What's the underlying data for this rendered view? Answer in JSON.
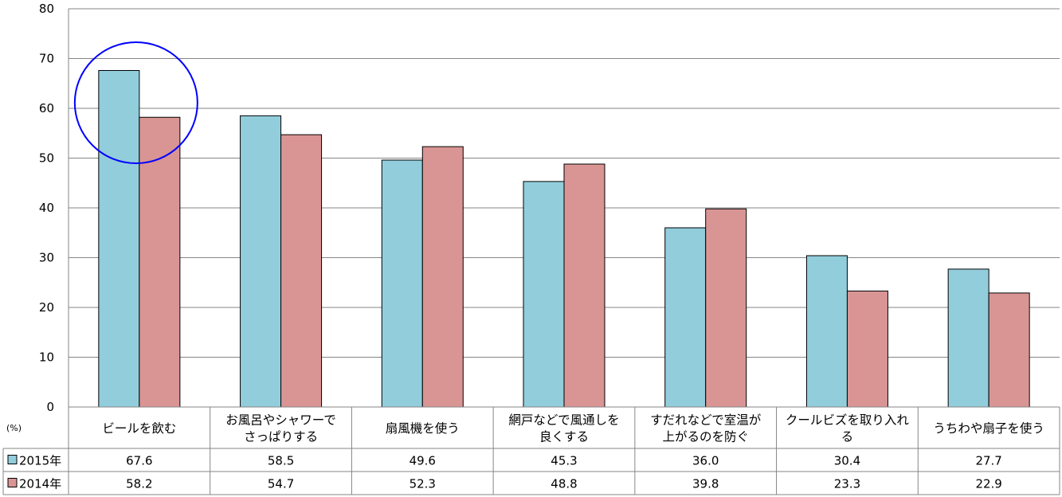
{
  "chart_data": {
    "type": "bar",
    "unit_label": "(%)",
    "categories": [
      [
        "ビールを飲む"
      ],
      [
        "お風呂やシャワーで",
        "さっぱりする"
      ],
      [
        "扇風機を使う"
      ],
      [
        "網戸などで風通しを",
        "良くする"
      ],
      [
        "すだれなどで室温が",
        "上がるのを防ぐ"
      ],
      [
        "クールビズを取り入れ",
        "る"
      ],
      [
        "うちわや扇子を使う"
      ]
    ],
    "series": [
      {
        "name": "2015年",
        "values": [
          67.6,
          58.5,
          49.6,
          45.3,
          36.0,
          30.4,
          27.7
        ],
        "labels": [
          "67.6",
          "58.5",
          "49.6",
          "45.3",
          "36.0",
          "30.4",
          "27.7"
        ],
        "color": "#92cddc"
      },
      {
        "name": "2014年",
        "values": [
          58.2,
          54.7,
          52.3,
          48.8,
          39.8,
          23.3,
          22.9
        ],
        "labels": [
          "58.2",
          "54.7",
          "52.3",
          "48.8",
          "39.8",
          "23.3",
          "22.9"
        ],
        "color": "#d99594"
      }
    ],
    "ylim": [
      0,
      80
    ],
    "yticks": [
      0,
      10,
      20,
      30,
      40,
      50,
      60,
      70,
      80
    ],
    "grid": true,
    "highlight_category_index": 0,
    "highlight_color": "#0000ff"
  }
}
